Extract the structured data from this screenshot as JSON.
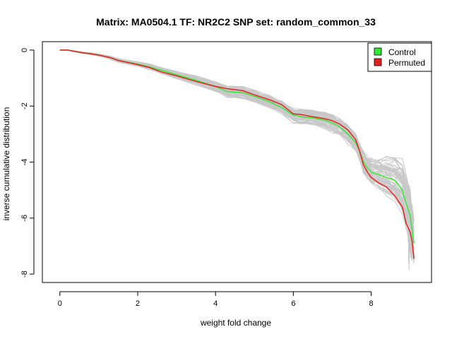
{
  "chart_data": {
    "type": "line",
    "title": "Matrix: MA0504.1 TF: NR2C2 SNP set: random_common_33",
    "xlabel": "weight fold change",
    "ylabel": "inverse cumulative distribution",
    "xlim": [
      -0.45,
      9.55
    ],
    "ylim": [
      -8.3,
      0.3
    ],
    "xticks": [
      0,
      2,
      4,
      6,
      8
    ],
    "yticks": [
      0,
      -2,
      -4,
      -6,
      -8
    ],
    "legend": {
      "position": "top-right",
      "entries": [
        "Control",
        "Permuted"
      ]
    },
    "colors": {
      "control": "#33e633",
      "permuted": "#e62020",
      "background_runs": "#c8c8c8"
    },
    "background_runs_count": 60,
    "series": [
      {
        "name": "Control",
        "color": "#33e633",
        "x": [
          0,
          0.2,
          0.4,
          0.6,
          0.8,
          1.0,
          1.3,
          1.5,
          2.0,
          2.3,
          2.6,
          3.0,
          3.5,
          4.0,
          4.3,
          4.7,
          5.0,
          5.4,
          5.7,
          6.0,
          6.2,
          6.5,
          6.8,
          7.0,
          7.2,
          7.4,
          7.6,
          7.7,
          7.8,
          7.9,
          8.0,
          8.2,
          8.4,
          8.6,
          8.8,
          8.9,
          9.0,
          9.05,
          9.1
        ],
        "y": [
          0,
          0,
          -0.05,
          -0.1,
          -0.13,
          -0.18,
          -0.27,
          -0.37,
          -0.5,
          -0.6,
          -0.72,
          -0.88,
          -1.08,
          -1.3,
          -1.48,
          -1.52,
          -1.65,
          -1.85,
          -2.05,
          -2.32,
          -2.38,
          -2.42,
          -2.5,
          -2.6,
          -2.75,
          -3.0,
          -3.3,
          -3.6,
          -4.0,
          -4.2,
          -4.35,
          -4.45,
          -4.55,
          -4.65,
          -5.0,
          -5.5,
          -5.9,
          -6.4,
          -6.9
        ]
      },
      {
        "name": "Permuted",
        "color": "#e62020",
        "x": [
          0,
          0.2,
          0.4,
          0.6,
          0.8,
          1.0,
          1.3,
          1.5,
          2.0,
          2.3,
          2.6,
          3.0,
          3.5,
          4.0,
          4.3,
          4.7,
          5.0,
          5.4,
          5.7,
          6.0,
          6.2,
          6.5,
          6.8,
          7.0,
          7.2,
          7.4,
          7.6,
          7.7,
          7.8,
          7.9,
          8.0,
          8.2,
          8.4,
          8.6,
          8.8,
          8.9,
          9.0,
          9.05,
          9.1
        ],
        "y": [
          0,
          0,
          -0.05,
          -0.1,
          -0.13,
          -0.18,
          -0.27,
          -0.37,
          -0.52,
          -0.62,
          -0.78,
          -0.92,
          -1.12,
          -1.3,
          -1.38,
          -1.45,
          -1.6,
          -1.78,
          -1.95,
          -2.28,
          -2.3,
          -2.38,
          -2.45,
          -2.52,
          -2.65,
          -2.85,
          -3.2,
          -3.6,
          -4.1,
          -4.35,
          -4.55,
          -4.75,
          -4.9,
          -5.2,
          -5.6,
          -6.2,
          -6.5,
          -6.8,
          -7.45
        ]
      }
    ]
  }
}
